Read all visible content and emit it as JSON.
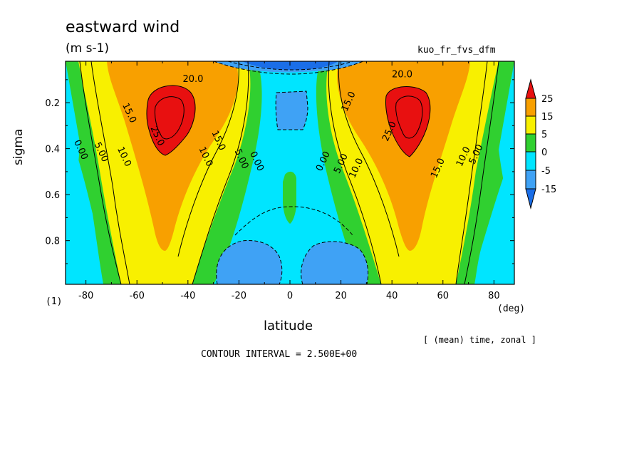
{
  "chart_data": {
    "type": "heatmap",
    "title": "eastward wind",
    "units": "(m s-1)",
    "run_name": "kuo_fr_fvs_dfm",
    "xlabel": "latitude",
    "x_unit": "(deg)",
    "ylabel": "sigma",
    "y_sublabel": "(1)",
    "averaging_note": "[ (mean) time, zonal ]",
    "contour_interval_text": "CONTOUR INTERVAL = 2.500E+00",
    "xlim": [
      -88,
      88
    ],
    "ylim": [
      0.02,
      0.99
    ],
    "y_inverted": true,
    "x_ticks": [
      -80,
      -60,
      -40,
      -20,
      0,
      20,
      40,
      60,
      80
    ],
    "x_tick_labels": [
      "-80",
      "-60",
      "-40",
      "-20",
      "0",
      "20",
      "40",
      "60",
      "80"
    ],
    "y_ticks": [
      0.2,
      0.4,
      0.6,
      0.8
    ],
    "y_tick_labels": [
      "0.2",
      "0.4",
      "0.6",
      "0.8"
    ],
    "colorbar": {
      "levels": [
        -15,
        -5,
        0,
        5,
        15,
        25
      ],
      "labels": [
        "25",
        "15",
        "5",
        "0",
        "-5",
        "-15"
      ],
      "colors": {
        "lt_m15": "#1a6ee8",
        "m15_m5": "#3fa2f5",
        "m5_0": "#00e5ff",
        "0_5": "#30d030",
        "5_15": "#f8f000",
        "15_25": "#f8a000",
        "gt_25": "#e81010"
      }
    },
    "contour_labels": [
      {
        "text": "20.0",
        "lat": -38,
        "sigma": 0.11
      },
      {
        "text": "15.0",
        "lat": -64,
        "sigma": 0.25
      },
      {
        "text": "25.0",
        "lat": -53,
        "sigma": 0.35
      },
      {
        "text": "15.0",
        "lat": -29,
        "sigma": 0.37
      },
      {
        "text": "10.0",
        "lat": -34,
        "sigma": 0.44
      },
      {
        "text": "5.00",
        "lat": -20,
        "sigma": 0.45
      },
      {
        "text": "0.00",
        "lat": -14,
        "sigma": 0.46
      },
      {
        "text": "10.0",
        "lat": -66,
        "sigma": 0.44
      },
      {
        "text": "5.00",
        "lat": -75,
        "sigma": 0.42
      },
      {
        "text": "0.00",
        "lat": -83,
        "sigma": 0.41
      },
      {
        "text": "20.0",
        "lat": 44,
        "sigma": 0.09
      },
      {
        "text": "15.0",
        "lat": 24,
        "sigma": 0.2
      },
      {
        "text": "25.0",
        "lat": 40,
        "sigma": 0.33
      },
      {
        "text": "0.00",
        "lat": 14,
        "sigma": 0.46
      },
      {
        "text": "5.00",
        "lat": 21,
        "sigma": 0.47
      },
      {
        "text": "10.0",
        "lat": 27,
        "sigma": 0.49
      },
      {
        "text": "15.0",
        "lat": 59,
        "sigma": 0.49
      },
      {
        "text": "10.0",
        "lat": 69,
        "sigma": 0.44
      },
      {
        "text": "5.00",
        "lat": 74,
        "sigma": 0.43
      }
    ],
    "jets": [
      {
        "name": "southern jet core",
        "lat": -50,
        "sigma": 0.25,
        "max_value": 25
      },
      {
        "name": "northern jet core",
        "lat": 47,
        "sigma": 0.25,
        "max_value": 25
      }
    ]
  }
}
